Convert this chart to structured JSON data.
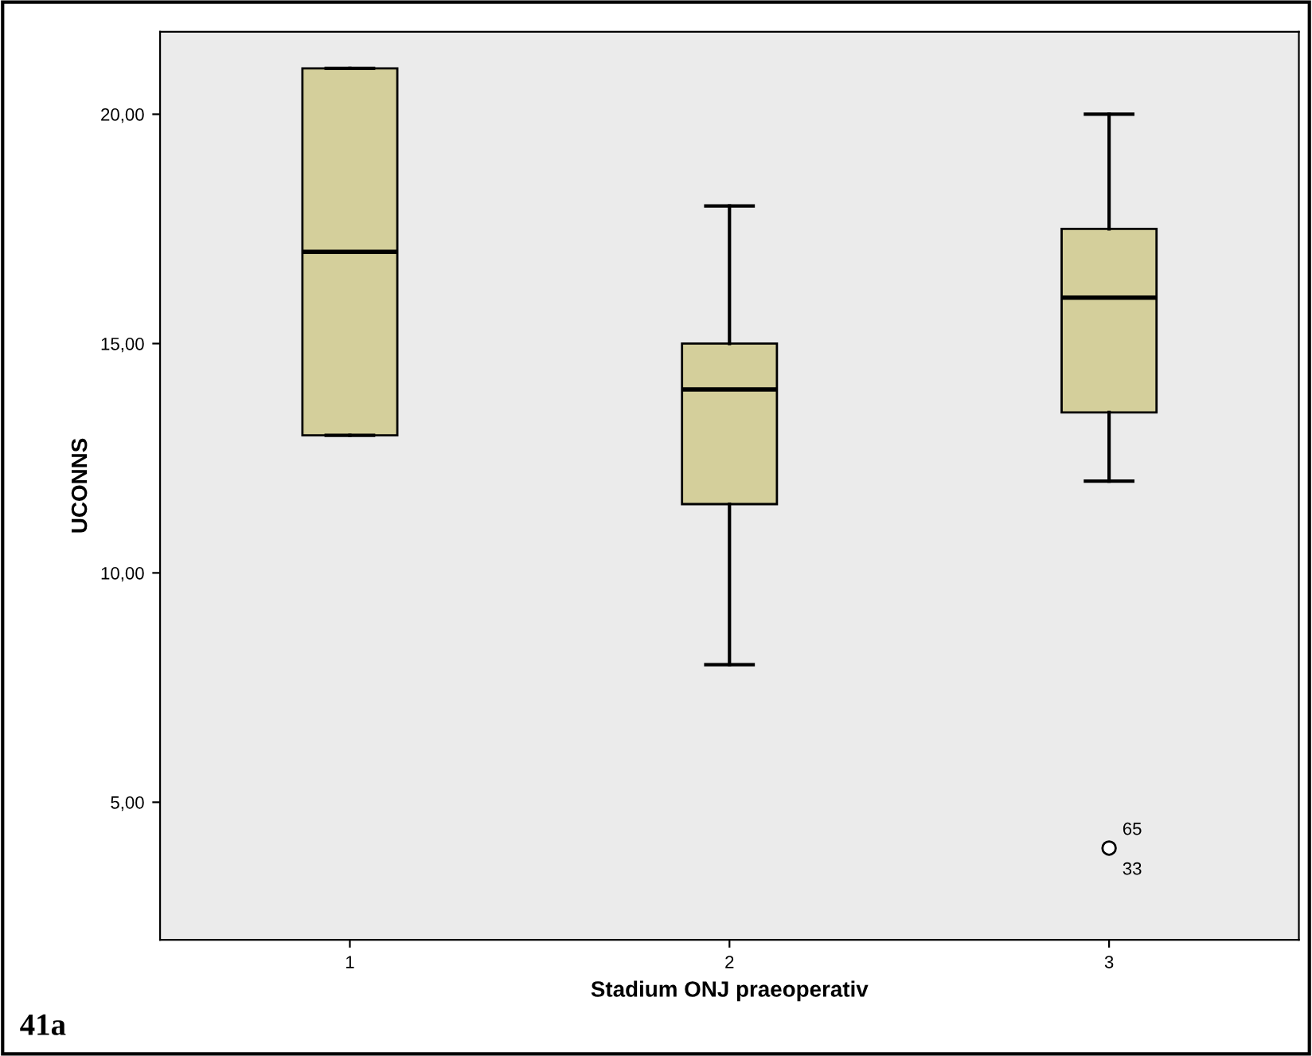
{
  "chart_data": {
    "type": "box",
    "xlabel": "Stadium ONJ praeoperativ",
    "ylabel": "UCONNS",
    "categories": [
      "1",
      "2",
      "3"
    ],
    "boxes": [
      {
        "low": 13,
        "q1": 13,
        "median": 17,
        "q3": 21,
        "high": 21
      },
      {
        "low": 8,
        "q1": 11.5,
        "median": 14,
        "q3": 15,
        "high": 18
      },
      {
        "low": 12,
        "q1": 13.5,
        "median": 16,
        "q3": 17.5,
        "high": 20,
        "outliers": [
          4
        ]
      }
    ],
    "color": "#d4cf9b",
    "ylim": [
      2,
      21.8
    ],
    "yticks": [
      {
        "value": 5,
        "label": "5,00"
      },
      {
        "value": 10,
        "label": "10,00"
      },
      {
        "value": 15,
        "label": "15,00"
      },
      {
        "value": 20,
        "label": "20,00"
      }
    ],
    "grid": false,
    "annotations": [
      "65",
      "33",
      "41a"
    ]
  }
}
